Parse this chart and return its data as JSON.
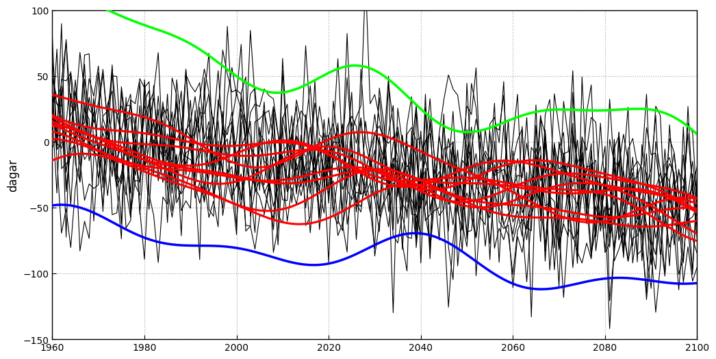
{
  "ylabel": "dagar",
  "xlim": [
    1960,
    2100
  ],
  "ylim": [
    -150,
    100
  ],
  "yticks": [
    -150,
    -100,
    -50,
    0,
    50,
    100
  ],
  "xticks": [
    1960,
    1980,
    2000,
    2020,
    2040,
    2060,
    2080,
    2100
  ],
  "grid_color": "#aaaaaa",
  "bg_color": "#ffffff",
  "seed": 42
}
